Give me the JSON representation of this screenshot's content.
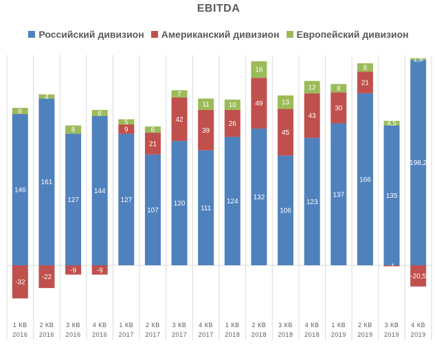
{
  "chart_data": {
    "type": "bar",
    "stacked": true,
    "title": "EBITDA",
    "categories": [
      [
        "1 КВ",
        "2016"
      ],
      [
        "2 КВ",
        "2016"
      ],
      [
        "3 КВ",
        "2016"
      ],
      [
        "4 КВ",
        "2016"
      ],
      [
        "1 КВ",
        "2017"
      ],
      [
        "2 КВ",
        "2017"
      ],
      [
        "3 КВ",
        "2017"
      ],
      [
        "4 КВ",
        "2017"
      ],
      [
        "1 КВ",
        "2018"
      ],
      [
        "2 КВ",
        "2018"
      ],
      [
        "3 КВ",
        "2018"
      ],
      [
        "4 КВ",
        "2018"
      ],
      [
        "1 КВ",
        "2019"
      ],
      [
        "2 КВ",
        "2019"
      ],
      [
        "3 КВ",
        "2019"
      ],
      [
        "4 КВ",
        "2019"
      ]
    ],
    "series": [
      {
        "name": "Российский дивизион",
        "color": "#4f81bd",
        "values": [
          146,
          161,
          127,
          144,
          127,
          107,
          120,
          111,
          124,
          132,
          106,
          123,
          137,
          166,
          135,
          198.2
        ],
        "labels": [
          "146",
          "161",
          "127",
          "144",
          "127",
          "107",
          "120",
          "111",
          "124",
          "132",
          "106",
          "123",
          "137",
          "166",
          "135",
          "198,2"
        ]
      },
      {
        "name": "Американский дивизион",
        "color": "#c0504d",
        "values": [
          -32,
          -22,
          -9,
          -9,
          9,
          21,
          42,
          39,
          26,
          49,
          45,
          43,
          30,
          21,
          -1,
          -20.5
        ],
        "labels": [
          "-32",
          "-22",
          "-9",
          "-9",
          "9",
          "21",
          "42",
          "39",
          "26",
          "49",
          "45",
          "43",
          "30",
          "21",
          "-1",
          "-20,5"
        ]
      },
      {
        "name": "Европейский дивизион",
        "color": "#9bbb59",
        "values": [
          6,
          4,
          8,
          6,
          5,
          6,
          7,
          11,
          10,
          16,
          13,
          12,
          8,
          8,
          4.5,
          1.8
        ],
        "labels": [
          "6",
          "4",
          "8",
          "6",
          "5",
          "6",
          "7",
          "11",
          "10",
          "16",
          "13",
          "12",
          "8",
          "8",
          "4,5",
          "1,8"
        ]
      }
    ],
    "legend_position": "top",
    "grid": false
  }
}
